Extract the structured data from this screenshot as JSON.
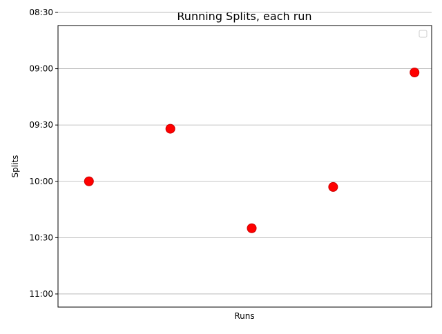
{
  "chart_data": {
    "type": "scatter",
    "title": "Running Splits, each run",
    "xlabel": "Runs",
    "ylabel": "Splits",
    "x": [
      1,
      2,
      3,
      4,
      5
    ],
    "xlim": [
      0.62,
      5.21
    ],
    "y_tick_labels": [
      "08:30",
      "09:00",
      "09:30",
      "10:00",
      "10:30",
      "11:00"
    ],
    "y_tick_seconds": [
      510,
      540,
      570,
      600,
      630,
      660
    ],
    "ylim_seconds": [
      517,
      667
    ],
    "y_inverted": true,
    "series": [
      {
        "values": [
          "10:00",
          "09:32",
          "10:25",
          "10:03",
          "09:02"
        ],
        "values_seconds": [
          600,
          572,
          625,
          603,
          542
        ],
        "color": "#ff0000"
      }
    ],
    "grid": "y-major",
    "legend": "top-right, empty",
    "colors": {
      "point_fill": "#ff0000",
      "point_edge": "#cc0000",
      "grid": "#b0b0b0",
      "axes": "#000000"
    }
  }
}
